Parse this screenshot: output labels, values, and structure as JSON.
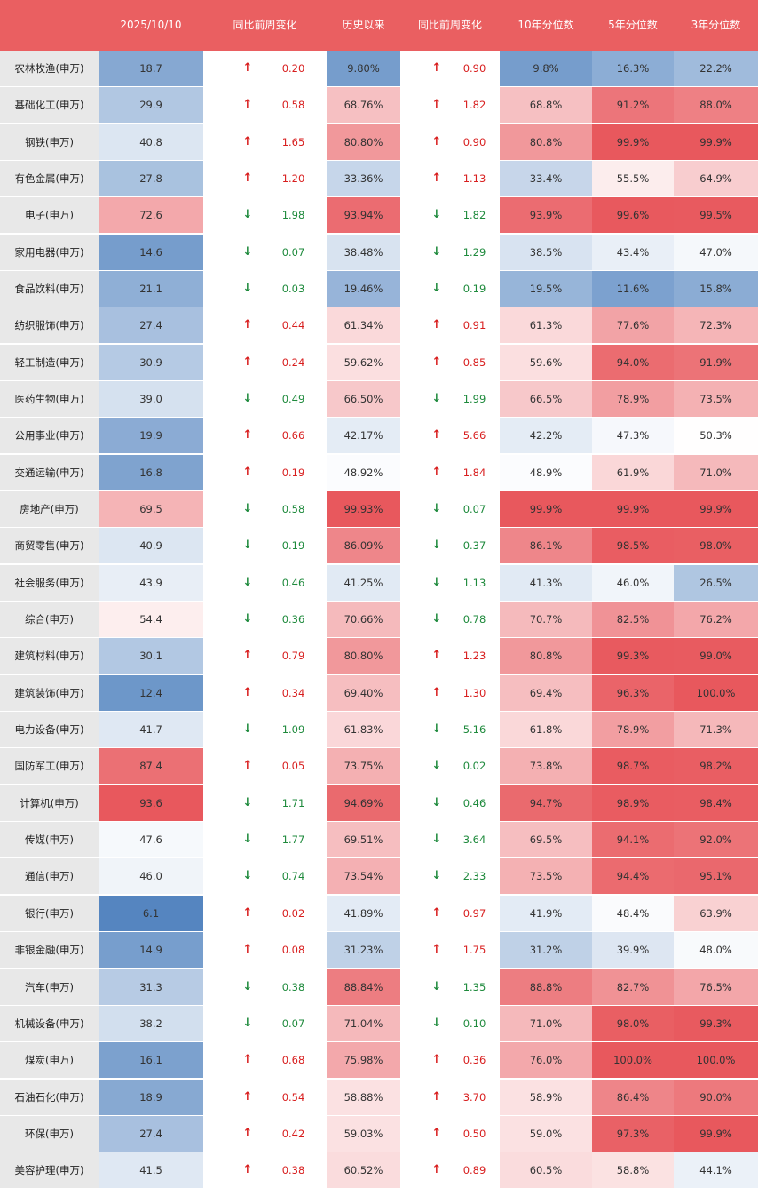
{
  "header": {
    "date": "2025/10/10",
    "chg1": "同比前周变化",
    "hist": "历史以来",
    "chg2": "同比前周变化",
    "p10": "10年分位数",
    "p5": "5年分位数",
    "p3": "3年分位数"
  },
  "colors": {
    "header_bg": "#ea5f61",
    "high": "#e8585d",
    "mid": "#ffffff",
    "low": "#5585c0",
    "up_arrow": "#d81e1e",
    "down_arrow": "#1e8a3c"
  },
  "arrows": {
    "up": "↑",
    "down": "↓"
  },
  "rows": [
    {
      "name": "农林牧渔(申万)",
      "value": "18.7",
      "dir1": "up",
      "chg1": "0.20",
      "hist": "9.80%",
      "dir2": "up",
      "chg2": "0.90",
      "p10": "9.8%",
      "p5": "16.3%",
      "p3": "22.2%"
    },
    {
      "name": "基础化工(申万)",
      "value": "29.9",
      "dir1": "up",
      "chg1": "0.58",
      "hist": "68.76%",
      "dir2": "up",
      "chg2": "1.82",
      "p10": "68.8%",
      "p5": "91.2%",
      "p3": "88.0%"
    },
    {
      "name": "钢铁(申万)",
      "value": "40.8",
      "dir1": "up",
      "chg1": "1.65",
      "hist": "80.80%",
      "dir2": "up",
      "chg2": "0.90",
      "p10": "80.8%",
      "p5": "99.9%",
      "p3": "99.9%"
    },
    {
      "name": "有色金属(申万)",
      "value": "27.8",
      "dir1": "up",
      "chg1": "1.20",
      "hist": "33.36%",
      "dir2": "up",
      "chg2": "1.13",
      "p10": "33.4%",
      "p5": "55.5%",
      "p3": "64.9%"
    },
    {
      "name": "电子(申万)",
      "value": "72.6",
      "dir1": "down",
      "chg1": "1.98",
      "hist": "93.94%",
      "dir2": "down",
      "chg2": "1.82",
      "p10": "93.9%",
      "p5": "99.6%",
      "p3": "99.5%"
    },
    {
      "name": "家用电器(申万)",
      "value": "14.6",
      "dir1": "down",
      "chg1": "0.07",
      "hist": "38.48%",
      "dir2": "down",
      "chg2": "1.29",
      "p10": "38.5%",
      "p5": "43.4%",
      "p3": "47.0%"
    },
    {
      "name": "食品饮料(申万)",
      "value": "21.1",
      "dir1": "down",
      "chg1": "0.03",
      "hist": "19.46%",
      "dir2": "down",
      "chg2": "0.19",
      "p10": "19.5%",
      "p5": "11.6%",
      "p3": "15.8%"
    },
    {
      "name": "纺织服饰(申万)",
      "value": "27.4",
      "dir1": "up",
      "chg1": "0.44",
      "hist": "61.34%",
      "dir2": "up",
      "chg2": "0.91",
      "p10": "61.3%",
      "p5": "77.6%",
      "p3": "72.3%"
    },
    {
      "name": "轻工制造(申万)",
      "value": "30.9",
      "dir1": "up",
      "chg1": "0.24",
      "hist": "59.62%",
      "dir2": "up",
      "chg2": "0.85",
      "p10": "59.6%",
      "p5": "94.0%",
      "p3": "91.9%"
    },
    {
      "name": "医药生物(申万)",
      "value": "39.0",
      "dir1": "down",
      "chg1": "0.49",
      "hist": "66.50%",
      "dir2": "down",
      "chg2": "1.99",
      "p10": "66.5%",
      "p5": "78.9%",
      "p3": "73.5%"
    },
    {
      "name": "公用事业(申万)",
      "value": "19.9",
      "dir1": "up",
      "chg1": "0.66",
      "hist": "42.17%",
      "dir2": "up",
      "chg2": "5.66",
      "p10": "42.2%",
      "p5": "47.3%",
      "p3": "50.3%"
    },
    {
      "name": "交通运输(申万)",
      "value": "16.8",
      "dir1": "up",
      "chg1": "0.19",
      "hist": "48.92%",
      "dir2": "up",
      "chg2": "1.84",
      "p10": "48.9%",
      "p5": "61.9%",
      "p3": "71.0%"
    },
    {
      "name": "房地产(申万)",
      "value": "69.5",
      "dir1": "down",
      "chg1": "0.58",
      "hist": "99.93%",
      "dir2": "down",
      "chg2": "0.07",
      "p10": "99.9%",
      "p5": "99.9%",
      "p3": "99.9%"
    },
    {
      "name": "商贸零售(申万)",
      "value": "40.9",
      "dir1": "down",
      "chg1": "0.19",
      "hist": "86.09%",
      "dir2": "down",
      "chg2": "0.37",
      "p10": "86.1%",
      "p5": "98.5%",
      "p3": "98.0%"
    },
    {
      "name": "社会服务(申万)",
      "value": "43.9",
      "dir1": "down",
      "chg1": "0.46",
      "hist": "41.25%",
      "dir2": "down",
      "chg2": "1.13",
      "p10": "41.3%",
      "p5": "46.0%",
      "p3": "26.5%"
    },
    {
      "name": "综合(申万)",
      "value": "54.4",
      "dir1": "down",
      "chg1": "0.36",
      "hist": "70.66%",
      "dir2": "down",
      "chg2": "0.78",
      "p10": "70.7%",
      "p5": "82.5%",
      "p3": "76.2%"
    },
    {
      "name": "建筑材料(申万)",
      "value": "30.1",
      "dir1": "up",
      "chg1": "0.79",
      "hist": "80.80%",
      "dir2": "up",
      "chg2": "1.23",
      "p10": "80.8%",
      "p5": "99.3%",
      "p3": "99.0%"
    },
    {
      "name": "建筑装饰(申万)",
      "value": "12.4",
      "dir1": "up",
      "chg1": "0.34",
      "hist": "69.40%",
      "dir2": "up",
      "chg2": "1.30",
      "p10": "69.4%",
      "p5": "96.3%",
      "p3": "100.0%"
    },
    {
      "name": "电力设备(申万)",
      "value": "41.7",
      "dir1": "down",
      "chg1": "1.09",
      "hist": "61.83%",
      "dir2": "down",
      "chg2": "5.16",
      "p10": "61.8%",
      "p5": "78.9%",
      "p3": "71.3%"
    },
    {
      "name": "国防军工(申万)",
      "value": "87.4",
      "dir1": "up",
      "chg1": "0.05",
      "hist": "73.75%",
      "dir2": "down",
      "chg2": "0.02",
      "p10": "73.8%",
      "p5": "98.7%",
      "p3": "98.2%"
    },
    {
      "name": "计算机(申万)",
      "value": "93.6",
      "dir1": "down",
      "chg1": "1.71",
      "hist": "94.69%",
      "dir2": "down",
      "chg2": "0.46",
      "p10": "94.7%",
      "p5": "98.9%",
      "p3": "98.4%"
    },
    {
      "name": "传媒(申万)",
      "value": "47.6",
      "dir1": "down",
      "chg1": "1.77",
      "hist": "69.51%",
      "dir2": "down",
      "chg2": "3.64",
      "p10": "69.5%",
      "p5": "94.1%",
      "p3": "92.0%"
    },
    {
      "name": "通信(申万)",
      "value": "46.0",
      "dir1": "down",
      "chg1": "0.74",
      "hist": "73.54%",
      "dir2": "down",
      "chg2": "2.33",
      "p10": "73.5%",
      "p5": "94.4%",
      "p3": "95.1%"
    },
    {
      "name": "银行(申万)",
      "value": "6.1",
      "dir1": "up",
      "chg1": "0.02",
      "hist": "41.89%",
      "dir2": "up",
      "chg2": "0.97",
      "p10": "41.9%",
      "p5": "48.4%",
      "p3": "63.9%"
    },
    {
      "name": "非银金融(申万)",
      "value": "14.9",
      "dir1": "up",
      "chg1": "0.08",
      "hist": "31.23%",
      "dir2": "up",
      "chg2": "1.75",
      "p10": "31.2%",
      "p5": "39.9%",
      "p3": "48.0%"
    },
    {
      "name": "汽车(申万)",
      "value": "31.3",
      "dir1": "down",
      "chg1": "0.38",
      "hist": "88.84%",
      "dir2": "down",
      "chg2": "1.35",
      "p10": "88.8%",
      "p5": "82.7%",
      "p3": "76.5%"
    },
    {
      "name": "机械设备(申万)",
      "value": "38.2",
      "dir1": "down",
      "chg1": "0.07",
      "hist": "71.04%",
      "dir2": "down",
      "chg2": "0.10",
      "p10": "71.0%",
      "p5": "98.0%",
      "p3": "99.3%"
    },
    {
      "name": "煤炭(申万)",
      "value": "16.1",
      "dir1": "up",
      "chg1": "0.68",
      "hist": "75.98%",
      "dir2": "up",
      "chg2": "0.36",
      "p10": "76.0%",
      "p5": "100.0%",
      "p3": "100.0%"
    },
    {
      "name": "石油石化(申万)",
      "value": "18.9",
      "dir1": "up",
      "chg1": "0.54",
      "hist": "58.88%",
      "dir2": "up",
      "chg2": "3.70",
      "p10": "58.9%",
      "p5": "86.4%",
      "p3": "90.0%"
    },
    {
      "name": "环保(申万)",
      "value": "27.4",
      "dir1": "up",
      "chg1": "0.42",
      "hist": "59.03%",
      "dir2": "up",
      "chg2": "0.50",
      "p10": "59.0%",
      "p5": "97.3%",
      "p3": "99.9%"
    },
    {
      "name": "美容护理(申万)",
      "value": "41.5",
      "dir1": "up",
      "chg1": "0.38",
      "hist": "60.52%",
      "dir2": "up",
      "chg2": "0.89",
      "p10": "60.5%",
      "p5": "58.8%",
      "p3": "44.1%"
    }
  ]
}
